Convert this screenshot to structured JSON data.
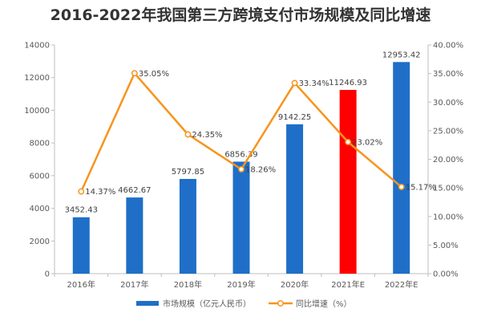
{
  "chart_data": {
    "type": "bar",
    "title": "2016-2022年我国第三方跨境支付市场规模及同比增速",
    "categories": [
      "2016年",
      "2017年",
      "2018年",
      "2019年",
      "2020年",
      "2021年E",
      "2022年E"
    ],
    "series": [
      {
        "name": "市场规模（亿元人民币）",
        "type": "bar",
        "axis": "left",
        "values": [
          3452.43,
          4662.67,
          5797.85,
          6856.39,
          9142.25,
          11246.93,
          12953.42
        ],
        "labels": [
          "3452.43",
          "4662.67",
          "5797.85",
          "6856.39",
          "9142.25",
          "11246.93",
          "12953.42"
        ],
        "color": "#1F6FC8",
        "highlight_index": 5,
        "highlight_color": "#FF0000"
      },
      {
        "name": "同比增速（%）",
        "type": "line",
        "axis": "right",
        "values": [
          14.37,
          35.05,
          24.35,
          18.26,
          33.34,
          23.02,
          15.17
        ],
        "labels": [
          "14.37%",
          "35.05%",
          "24.35%",
          "18.26%",
          "33.34%",
          "23.02%",
          "15.17%"
        ],
        "color": "#F7941D"
      }
    ],
    "y_left": {
      "ylim": [
        0,
        14000
      ],
      "ticks": [
        "0",
        "2000",
        "4000",
        "6000",
        "8000",
        "10000",
        "12000",
        "14000"
      ]
    },
    "y_right": {
      "ylim": [
        0,
        40
      ],
      "ticks": [
        "0.00%",
        "5.00%",
        "10.00%",
        "15.00%",
        "20.00%",
        "25.00%",
        "30.00%",
        "35.00%",
        "40.00%"
      ]
    },
    "grid": false,
    "legend": "bottom"
  }
}
